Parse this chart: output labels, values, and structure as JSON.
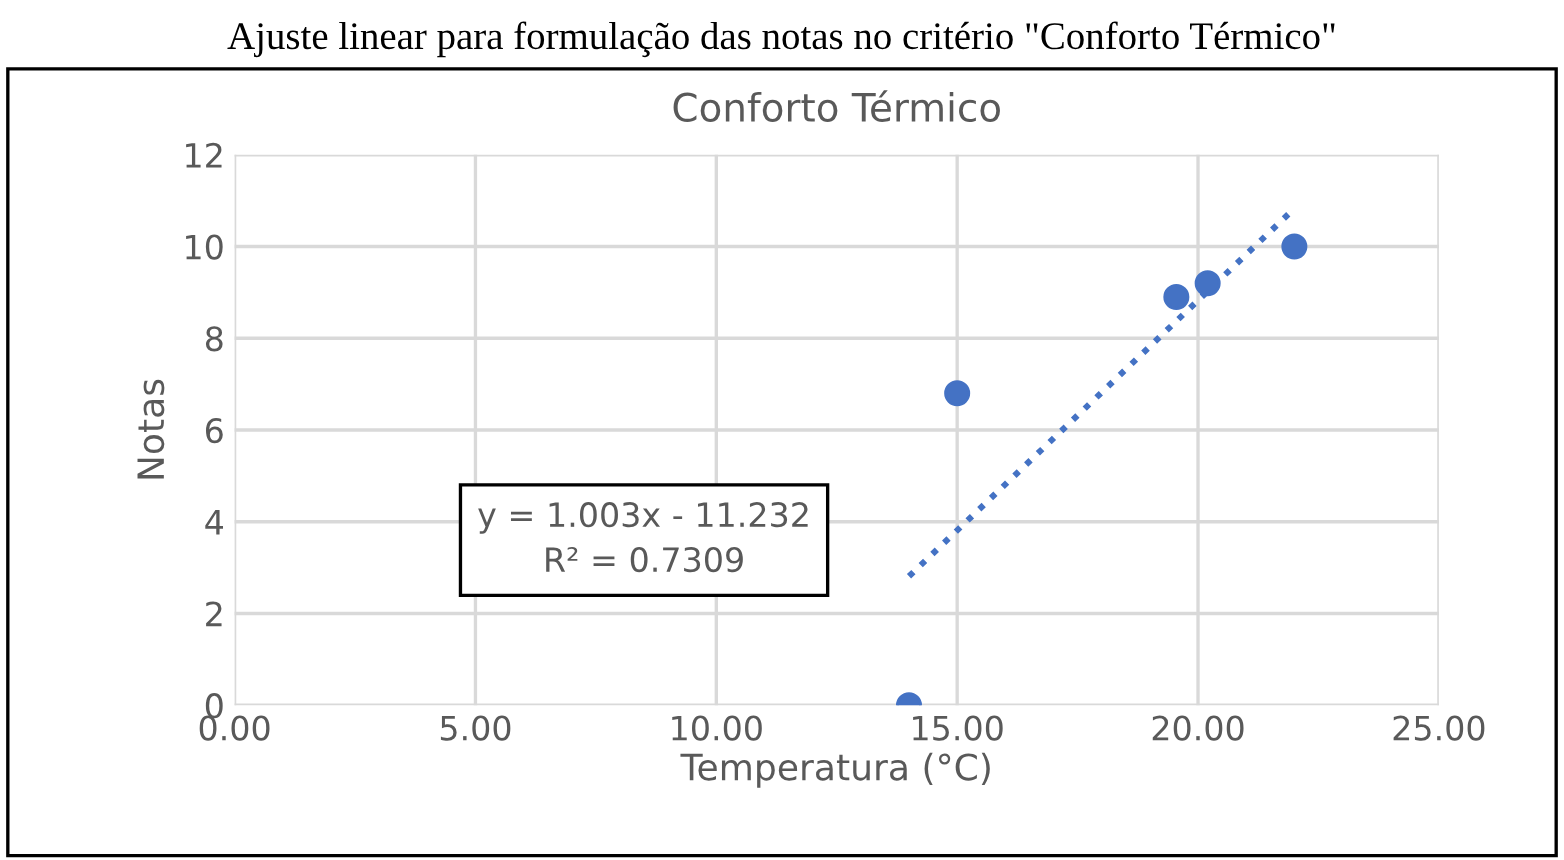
{
  "chart_data": {
    "type": "scatter",
    "title": "Conforto Térmico",
    "xlabel": "Temperatura (°C)",
    "ylabel": "Notas",
    "annotations": [
      "Ajuste linear para formulação das notas no critério \"Conforto Térmico\"",
      "y = 1.003x - 11.232\nR² = 0.7309"
    ],
    "series": [
      {
        "color": "#4472c4",
        "x": [
          14,
          15,
          19.55,
          20.2,
          22
        ],
        "values": [
          0,
          6.8,
          8.9,
          9.2,
          10
        ],
        "marker": "circle"
      },
      {
        "type": "line",
        "color": "#4472c4",
        "x": [
          14,
          22
        ],
        "values": [
          2.81,
          10.83
        ],
        "line_style": "dotted",
        "marker": "none"
      }
    ],
    "xlim": [
      0,
      25
    ],
    "xticks": [
      {
        "value": 0,
        "label": "0.00"
      },
      {
        "value": 5,
        "label": "5.00"
      },
      {
        "value": 10,
        "label": "10.00"
      },
      {
        "value": 15,
        "label": "15.00"
      },
      {
        "value": 20,
        "label": "20.00"
      },
      {
        "value": 25,
        "label": "25.00"
      }
    ],
    "ylim": [
      0,
      12
    ],
    "yticks": [
      0,
      2,
      4,
      6,
      8,
      10,
      12
    ],
    "grid": true,
    "legend": false
  }
}
